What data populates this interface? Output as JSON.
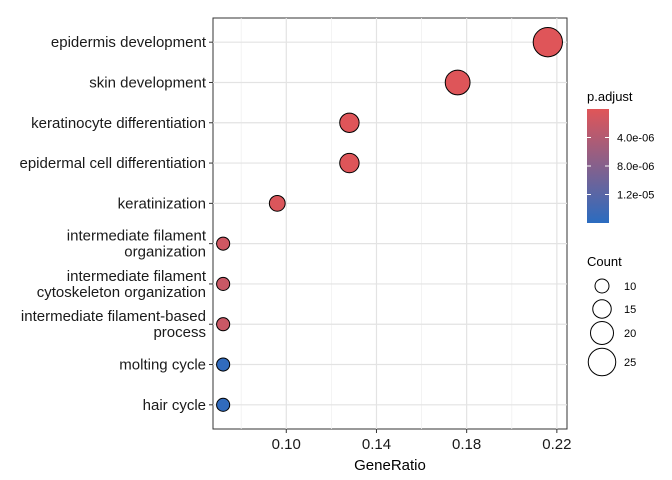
{
  "chart_data": {
    "type": "scatter",
    "xlabel": "GeneRatio",
    "ylabel": "",
    "xlim": [
      0.0675,
      0.2245
    ],
    "x_ticks": [
      "0.10",
      "0.14",
      "0.18",
      "0.22"
    ],
    "x_tick_values": [
      0.1,
      0.14,
      0.18,
      0.22
    ],
    "grid": true,
    "legend_position": "right",
    "categories": [
      {
        "label_lines": [
          "epidermis development"
        ],
        "gene_ratio": 0.216,
        "count": 27,
        "p_adjust": 1e-07
      },
      {
        "label_lines": [
          "skin development"
        ],
        "gene_ratio": 0.176,
        "count": 22,
        "p_adjust": 2e-07
      },
      {
        "label_lines": [
          "keratinocyte differentiation"
        ],
        "gene_ratio": 0.128,
        "count": 16,
        "p_adjust": 1e-07
      },
      {
        "label_lines": [
          "epidermal cell differentiation"
        ],
        "gene_ratio": 0.128,
        "count": 16,
        "p_adjust": 1.5e-07
      },
      {
        "label_lines": [
          "keratinization"
        ],
        "gene_ratio": 0.096,
        "count": 12,
        "p_adjust": 5e-07
      },
      {
        "label_lines": [
          "intermediate filament",
          "organization"
        ],
        "gene_ratio": 0.072,
        "count": 9,
        "p_adjust": 1.5e-06
      },
      {
        "label_lines": [
          "intermediate filament",
          "cytoskeleton organization"
        ],
        "gene_ratio": 0.072,
        "count": 9,
        "p_adjust": 2e-06
      },
      {
        "label_lines": [
          "intermediate filament-based",
          "process"
        ],
        "gene_ratio": 0.072,
        "count": 9,
        "p_adjust": 2e-06
      },
      {
        "label_lines": [
          "molting cycle"
        ],
        "gene_ratio": 0.072,
        "count": 9,
        "p_adjust": 1.55e-05
      },
      {
        "label_lines": [
          "hair cycle"
        ],
        "gene_ratio": 0.072,
        "count": 9,
        "p_adjust": 1.55e-05
      }
    ],
    "color_legend": {
      "title": "p.adjust",
      "low_color": "#e05558",
      "high_color": "#2b6cc0",
      "range": [
        0,
        1.6e-05
      ],
      "tick_values": [
        4e-06,
        8e-06,
        1.2e-05
      ],
      "tick_labels": [
        "4.0e-06",
        "8.0e-06",
        "1.2e-05"
      ]
    },
    "size_legend": {
      "title": "Count",
      "values": [
        10,
        15,
        20,
        25
      ],
      "labels": [
        "10",
        "15",
        "20",
        "25"
      ]
    }
  }
}
